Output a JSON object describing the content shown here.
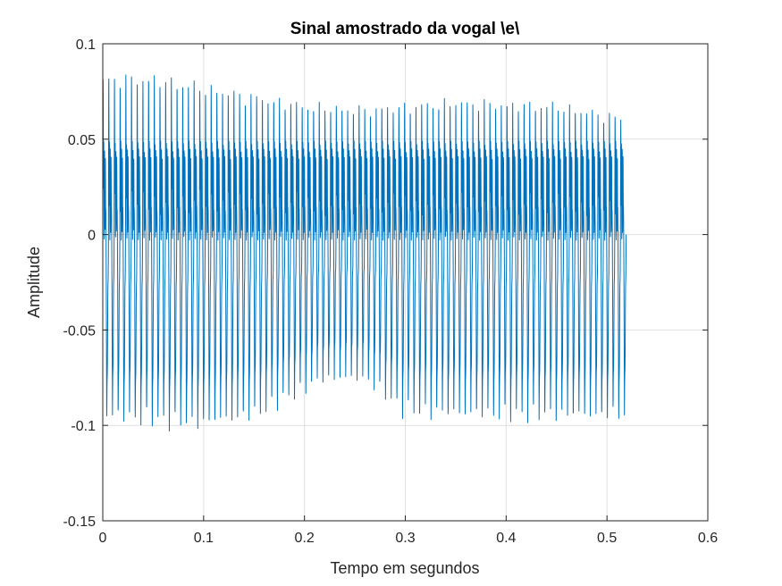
{
  "chart_data": {
    "type": "line",
    "title": "Sinal amostrado da vogal \\e\\",
    "xlabel": "Tempo em segundos",
    "ylabel": "Amplitude",
    "xlim": [
      0,
      0.6
    ],
    "ylim": [
      -0.15,
      0.1
    ],
    "xticks": [
      0,
      0.1,
      0.2,
      0.3,
      0.4,
      0.5,
      0.6
    ],
    "xtick_labels": [
      "0",
      "0.1",
      "0.2",
      "0.3",
      "0.4",
      "0.5",
      "0.6"
    ],
    "yticks": [
      -0.15,
      -0.1,
      -0.05,
      0,
      0.05,
      0.1
    ],
    "ytick_labels": [
      "-0.15",
      "-0.1",
      "-0.05",
      "0",
      "0.05",
      "0.1"
    ],
    "grid": true,
    "series": [
      {
        "color": "#0072BD",
        "signal": {
          "t_start": 0,
          "t_end": 0.519,
          "period_count": 92,
          "peak_envelope": [
            [
              0,
              0.085
            ],
            [
              0.05,
              0.085
            ],
            [
              0.1,
              0.08
            ],
            [
              0.2,
              0.07
            ],
            [
              0.26,
              0.068
            ],
            [
              0.35,
              0.072
            ],
            [
              0.45,
              0.07
            ],
            [
              0.519,
              0.063
            ]
          ],
          "trough_envelope": [
            [
              0,
              -0.1
            ],
            [
              0.09,
              -0.105
            ],
            [
              0.15,
              -0.1
            ],
            [
              0.22,
              -0.08
            ],
            [
              0.26,
              -0.08
            ],
            [
              0.3,
              -0.098
            ],
            [
              0.4,
              -0.1
            ],
            [
              0.519,
              -0.1
            ]
          ]
        }
      }
    ]
  }
}
